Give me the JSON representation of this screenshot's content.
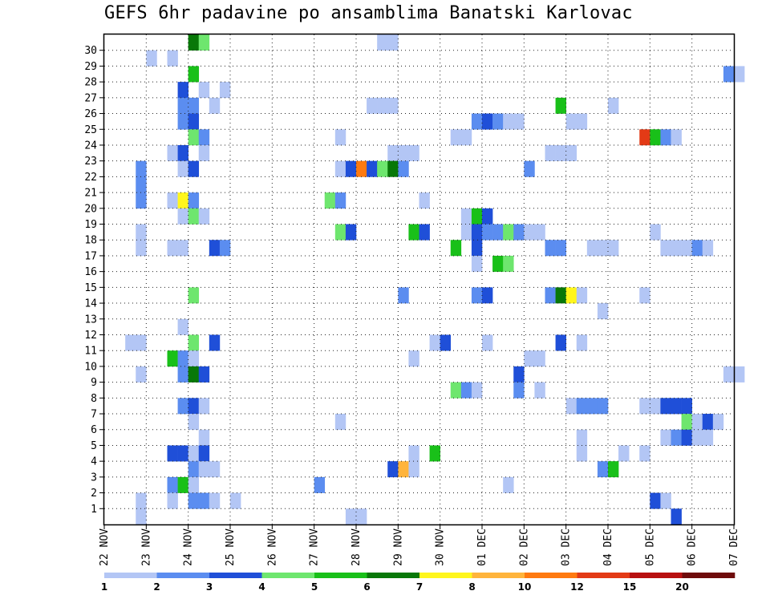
{
  "chart_data": {
    "type": "heatmap",
    "title": "GEFS 6hr padavine po ansamblima Banatski Karlovac",
    "xlabel": "",
    "ylabel": "",
    "x_tick_labels": [
      "22 NOV",
      "23 NOV",
      "24 NOV",
      "25 NOV",
      "26 NOV",
      "27 NOV",
      "28 NOV",
      "29 NOV",
      "30 NOV",
      "01 DEC",
      "02 DEC",
      "03 DEC",
      "04 DEC",
      "05 DEC",
      "06 DEC",
      "07 DEC"
    ],
    "x_range_steps": [
      0,
      60
    ],
    "y_tick_labels": [
      "1",
      "2",
      "3",
      "4",
      "5",
      "6",
      "7",
      "8",
      "9",
      "10",
      "11",
      "12",
      "13",
      "14",
      "15",
      "16",
      "17",
      "18",
      "19",
      "20",
      "21",
      "22",
      "23",
      "24",
      "25",
      "26",
      "27",
      "28",
      "29",
      "30"
    ],
    "grid": true,
    "colorbar": {
      "labels": [
        "1",
        "2",
        "3",
        "4",
        "5",
        "6",
        "7",
        "8",
        "10",
        "12",
        "15",
        "20"
      ],
      "colors": [
        "#b3c6f5",
        "#5b8df0",
        "#1f4fd8",
        "#6ee66e",
        "#19c019",
        "#087808",
        "#fff61c",
        "#ffb43c",
        "#ff7a10",
        "#e33a16",
        "#b81010",
        "#6e0b0b"
      ]
    },
    "cells": [
      [
        8,
        30,
        5
      ],
      [
        9,
        30,
        3
      ],
      [
        26,
        30,
        0
      ],
      [
        27,
        30,
        0
      ],
      [
        4,
        29,
        0
      ],
      [
        6,
        29,
        0
      ],
      [
        8,
        28,
        4
      ],
      [
        59,
        28,
        1
      ],
      [
        60,
        28,
        0
      ],
      [
        7,
        27,
        2
      ],
      [
        9,
        27,
        0
      ],
      [
        11,
        27,
        0
      ],
      [
        7,
        26,
        1
      ],
      [
        8,
        26,
        1
      ],
      [
        10,
        26,
        0
      ],
      [
        25,
        26,
        0
      ],
      [
        26,
        26,
        0
      ],
      [
        27,
        26,
        0
      ],
      [
        43,
        26,
        4
      ],
      [
        48,
        26,
        0
      ],
      [
        7,
        25,
        1
      ],
      [
        8,
        25,
        2
      ],
      [
        35,
        25,
        1
      ],
      [
        36,
        25,
        2
      ],
      [
        37,
        25,
        1
      ],
      [
        38,
        25,
        0
      ],
      [
        39,
        25,
        0
      ],
      [
        44,
        25,
        0
      ],
      [
        45,
        25,
        0
      ],
      [
        8,
        24,
        3
      ],
      [
        9,
        24,
        1
      ],
      [
        22,
        24,
        0
      ],
      [
        33,
        24,
        0
      ],
      [
        34,
        24,
        0
      ],
      [
        51,
        24,
        9
      ],
      [
        52,
        24,
        4
      ],
      [
        53,
        24,
        1
      ],
      [
        54,
        24,
        0
      ],
      [
        6,
        23,
        0
      ],
      [
        7,
        23,
        2
      ],
      [
        9,
        23,
        0
      ],
      [
        27,
        23,
        0
      ],
      [
        28,
        23,
        0
      ],
      [
        29,
        23,
        0
      ],
      [
        42,
        23,
        0
      ],
      [
        43,
        23,
        0
      ],
      [
        44,
        23,
        0
      ],
      [
        3,
        22,
        1
      ],
      [
        7,
        22,
        0
      ],
      [
        8,
        22,
        2
      ],
      [
        22,
        22,
        0
      ],
      [
        23,
        22,
        2
      ],
      [
        24,
        22,
        8
      ],
      [
        25,
        22,
        2
      ],
      [
        26,
        22,
        3
      ],
      [
        27,
        22,
        5
      ],
      [
        28,
        22,
        1
      ],
      [
        40,
        22,
        1
      ],
      [
        3,
        21,
        1
      ],
      [
        3,
        20,
        1
      ],
      [
        6,
        20,
        0
      ],
      [
        7,
        20,
        6
      ],
      [
        8,
        20,
        1
      ],
      [
        21,
        20,
        3
      ],
      [
        22,
        20,
        1
      ],
      [
        30,
        20,
        0
      ],
      [
        7,
        19,
        0
      ],
      [
        8,
        19,
        3
      ],
      [
        9,
        19,
        0
      ],
      [
        34,
        19,
        0
      ],
      [
        35,
        19,
        4
      ],
      [
        36,
        19,
        2
      ],
      [
        3,
        18,
        0
      ],
      [
        22,
        18,
        3
      ],
      [
        23,
        18,
        2
      ],
      [
        29,
        18,
        4
      ],
      [
        30,
        18,
        2
      ],
      [
        34,
        18,
        0
      ],
      [
        35,
        18,
        2
      ],
      [
        36,
        18,
        1
      ],
      [
        37,
        18,
        1
      ],
      [
        38,
        18,
        3
      ],
      [
        39,
        18,
        1
      ],
      [
        40,
        18,
        0
      ],
      [
        41,
        18,
        0
      ],
      [
        52,
        18,
        0
      ],
      [
        3,
        17,
        0
      ],
      [
        6,
        17,
        0
      ],
      [
        7,
        17,
        0
      ],
      [
        10,
        17,
        2
      ],
      [
        11,
        17,
        1
      ],
      [
        33,
        17,
        4
      ],
      [
        35,
        17,
        2
      ],
      [
        42,
        17,
        1
      ],
      [
        43,
        17,
        1
      ],
      [
        46,
        17,
        0
      ],
      [
        47,
        17,
        0
      ],
      [
        48,
        17,
        0
      ],
      [
        53,
        17,
        0
      ],
      [
        54,
        17,
        0
      ],
      [
        55,
        17,
        0
      ],
      [
        56,
        17,
        1
      ],
      [
        57,
        17,
        0
      ],
      [
        35,
        16,
        0
      ],
      [
        37,
        16,
        4
      ],
      [
        38,
        16,
        3
      ],
      [
        8,
        14,
        3
      ],
      [
        28,
        14,
        1
      ],
      [
        35,
        14,
        1
      ],
      [
        36,
        14,
        2
      ],
      [
        42,
        14,
        1
      ],
      [
        43,
        14,
        5
      ],
      [
        44,
        14,
        6
      ],
      [
        45,
        14,
        0
      ],
      [
        51,
        14,
        0
      ],
      [
        47,
        13,
        0
      ],
      [
        7,
        12,
        0
      ],
      [
        2,
        11,
        0
      ],
      [
        3,
        11,
        0
      ],
      [
        8,
        11,
        3
      ],
      [
        10,
        11,
        2
      ],
      [
        31,
        11,
        0
      ],
      [
        32,
        11,
        2
      ],
      [
        36,
        11,
        0
      ],
      [
        43,
        11,
        2
      ],
      [
        45,
        11,
        0
      ],
      [
        6,
        10,
        4
      ],
      [
        7,
        10,
        1
      ],
      [
        8,
        10,
        0
      ],
      [
        29,
        10,
        0
      ],
      [
        40,
        10,
        0
      ],
      [
        41,
        10,
        0
      ],
      [
        3,
        9,
        0
      ],
      [
        7,
        9,
        1
      ],
      [
        8,
        9,
        5
      ],
      [
        9,
        9,
        2
      ],
      [
        39,
        9,
        2
      ],
      [
        59,
        9,
        0
      ],
      [
        60,
        9,
        0
      ],
      [
        33,
        8,
        3
      ],
      [
        34,
        8,
        1
      ],
      [
        35,
        8,
        0
      ],
      [
        39,
        8,
        1
      ],
      [
        41,
        8,
        0
      ],
      [
        7,
        7,
        1
      ],
      [
        8,
        7,
        2
      ],
      [
        9,
        7,
        0
      ],
      [
        44,
        7,
        0
      ],
      [
        45,
        7,
        1
      ],
      [
        46,
        7,
        1
      ],
      [
        47,
        7,
        1
      ],
      [
        51,
        7,
        0
      ],
      [
        52,
        7,
        0
      ],
      [
        53,
        7,
        2
      ],
      [
        54,
        7,
        2
      ],
      [
        55,
        7,
        2
      ],
      [
        8,
        6,
        0
      ],
      [
        22,
        6,
        0
      ],
      [
        55,
        6,
        3
      ],
      [
        56,
        6,
        0
      ],
      [
        57,
        6,
        2
      ],
      [
        58,
        6,
        0
      ],
      [
        9,
        5,
        0
      ],
      [
        45,
        5,
        0
      ],
      [
        53,
        5,
        0
      ],
      [
        54,
        5,
        1
      ],
      [
        55,
        5,
        2
      ],
      [
        56,
        5,
        0
      ],
      [
        57,
        5,
        0
      ],
      [
        6,
        4,
        2
      ],
      [
        7,
        4,
        2
      ],
      [
        8,
        4,
        0
      ],
      [
        9,
        4,
        2
      ],
      [
        29,
        4,
        0
      ],
      [
        31,
        4,
        4
      ],
      [
        45,
        4,
        0
      ],
      [
        49,
        4,
        0
      ],
      [
        51,
        4,
        0
      ],
      [
        8,
        3,
        1
      ],
      [
        9,
        3,
        0
      ],
      [
        10,
        3,
        0
      ],
      [
        27,
        3,
        2
      ],
      [
        28,
        3,
        7
      ],
      [
        29,
        3,
        0
      ],
      [
        47,
        3,
        1
      ],
      [
        48,
        3,
        4
      ],
      [
        6,
        2,
        1
      ],
      [
        7,
        2,
        4
      ],
      [
        8,
        2,
        0
      ],
      [
        20,
        2,
        1
      ],
      [
        38,
        2,
        0
      ],
      [
        3,
        1,
        0
      ],
      [
        6,
        1,
        0
      ],
      [
        8,
        1,
        1
      ],
      [
        9,
        1,
        1
      ],
      [
        10,
        1,
        0
      ],
      [
        12,
        1,
        0
      ],
      [
        52,
        1,
        2
      ],
      [
        53,
        1,
        0
      ],
      [
        3,
        0,
        0
      ],
      [
        23,
        0,
        0
      ],
      [
        24,
        0,
        0
      ],
      [
        54,
        0,
        2
      ]
    ]
  }
}
